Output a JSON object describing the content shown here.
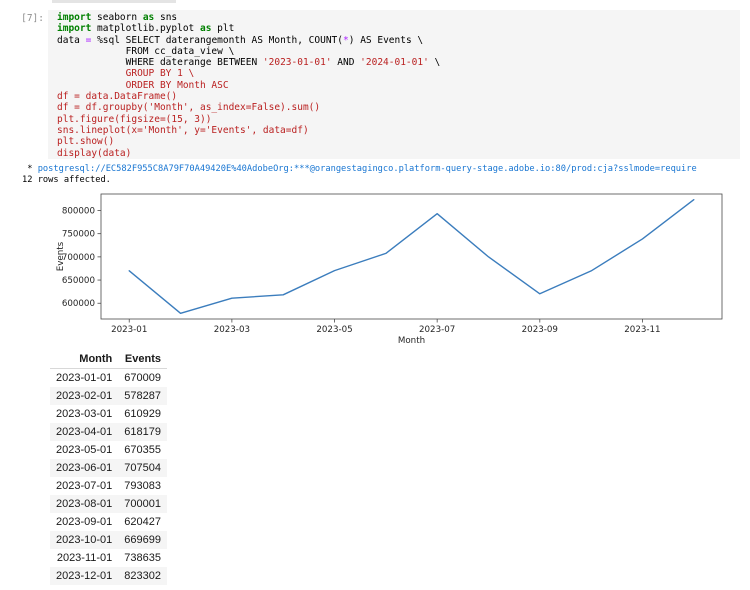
{
  "notebook": {
    "prompt": "[7]:",
    "code_lines": [
      {
        "segments": [
          {
            "text": "import",
            "style": "kw"
          },
          {
            "text": " seaborn ",
            "style": "d"
          },
          {
            "text": "as",
            "style": "kw"
          },
          {
            "text": " sns",
            "style": "d"
          }
        ]
      },
      {
        "segments": [
          {
            "text": "import",
            "style": "kw"
          },
          {
            "text": " matplotlib.pyplot ",
            "style": "d"
          },
          {
            "text": "as",
            "style": "kw"
          },
          {
            "text": " plt",
            "style": "d"
          }
        ]
      },
      {
        "segments": [
          {
            "text": "data ",
            "style": "d"
          },
          {
            "text": "=",
            "style": "op"
          },
          {
            "text": " %sql SELECT daterangemonth AS Month, COUNT(",
            "style": "d"
          },
          {
            "text": "*",
            "style": "op"
          },
          {
            "text": ") AS Events \\",
            "style": "d"
          }
        ]
      },
      {
        "segments": [
          {
            "text": "            FROM cc_data_view \\",
            "style": "d"
          }
        ]
      },
      {
        "segments": [
          {
            "text": "            WHERE daterange BETWEEN ",
            "style": "d"
          },
          {
            "text": "'2023-01-01'",
            "style": "str"
          },
          {
            "text": " AND ",
            "style": "d"
          },
          {
            "text": "'2024-01-01'",
            "style": "str"
          },
          {
            "text": " \\",
            "style": "d"
          }
        ]
      },
      {
        "segments": [
          {
            "text": "            GROUP BY 1 \\",
            "style": "red"
          }
        ]
      },
      {
        "segments": [
          {
            "text": "            ORDER BY Month ASC",
            "style": "red"
          }
        ]
      },
      {
        "segments": [
          {
            "text": "df = data.DataFrame()",
            "style": "red"
          }
        ]
      },
      {
        "segments": [
          {
            "text": "df = df.groupby('Month', as_index=False).sum()",
            "style": "red"
          }
        ]
      },
      {
        "segments": [
          {
            "text": "plt.figure(figsize=(15, 3))",
            "style": "red"
          }
        ]
      },
      {
        "segments": [
          {
            "text": "sns.lineplot(x='Month', y='Events', data=df)",
            "style": "red"
          }
        ]
      },
      {
        "segments": [
          {
            "text": "plt.show()",
            "style": "red"
          }
        ]
      },
      {
        "segments": [
          {
            "text": "display(data)",
            "style": "red"
          }
        ]
      }
    ],
    "output": {
      "connection_prefix": " * ",
      "connection_url": "postgresql://EC582F955C8A79F70A49420E%40AdobeOrg:***@orangestagingco.platform-query-stage.adobe.io:80/prod:cja?sslmode=require",
      "rows_affected": "12 rows affected."
    }
  },
  "chart_data": {
    "type": "line",
    "title": "",
    "xlabel": "Month",
    "ylabel": "Events",
    "x": [
      "2023-01",
      "2023-02",
      "2023-03",
      "2023-04",
      "2023-05",
      "2023-06",
      "2023-07",
      "2023-08",
      "2023-09",
      "2023-10",
      "2023-11",
      "2023-12"
    ],
    "values": [
      670009,
      578287,
      610929,
      618179,
      670355,
      707504,
      793083,
      700001,
      620427,
      669699,
      738635,
      823302
    ],
    "yticks": [
      600000,
      650000,
      700000,
      750000,
      800000
    ],
    "xtick_indices": [
      0,
      2,
      4,
      6,
      8,
      10
    ],
    "xtick_labels": [
      "2023-01",
      "2023-03",
      "2023-05",
      "2023-07",
      "2023-09",
      "2023-11"
    ],
    "xlim": [
      -0.55,
      11.55
    ],
    "ylim": [
      566036,
      835553
    ],
    "grid": false,
    "legend": null
  },
  "table": {
    "columns": [
      "Month",
      "Events"
    ],
    "rows": [
      [
        "2023-01-01",
        "670009"
      ],
      [
        "2023-02-01",
        "578287"
      ],
      [
        "2023-03-01",
        "610929"
      ],
      [
        "2023-04-01",
        "618179"
      ],
      [
        "2023-05-01",
        "670355"
      ],
      [
        "2023-06-01",
        "707504"
      ],
      [
        "2023-07-01",
        "793083"
      ],
      [
        "2023-08-01",
        "700001"
      ],
      [
        "2023-09-01",
        "620427"
      ],
      [
        "2023-10-01",
        "669699"
      ],
      [
        "2023-11-01",
        "738635"
      ],
      [
        "2023-12-01",
        "823302"
      ]
    ]
  },
  "colors": {
    "keyword": "#008000",
    "operator": "#AA22FF",
    "string_red": "#BA2121",
    "link_blue": "#1976d2",
    "line_blue": "#3b7dbd",
    "cell_bg": "#f5f5f5",
    "row_stripe": "#f5f5f5"
  }
}
